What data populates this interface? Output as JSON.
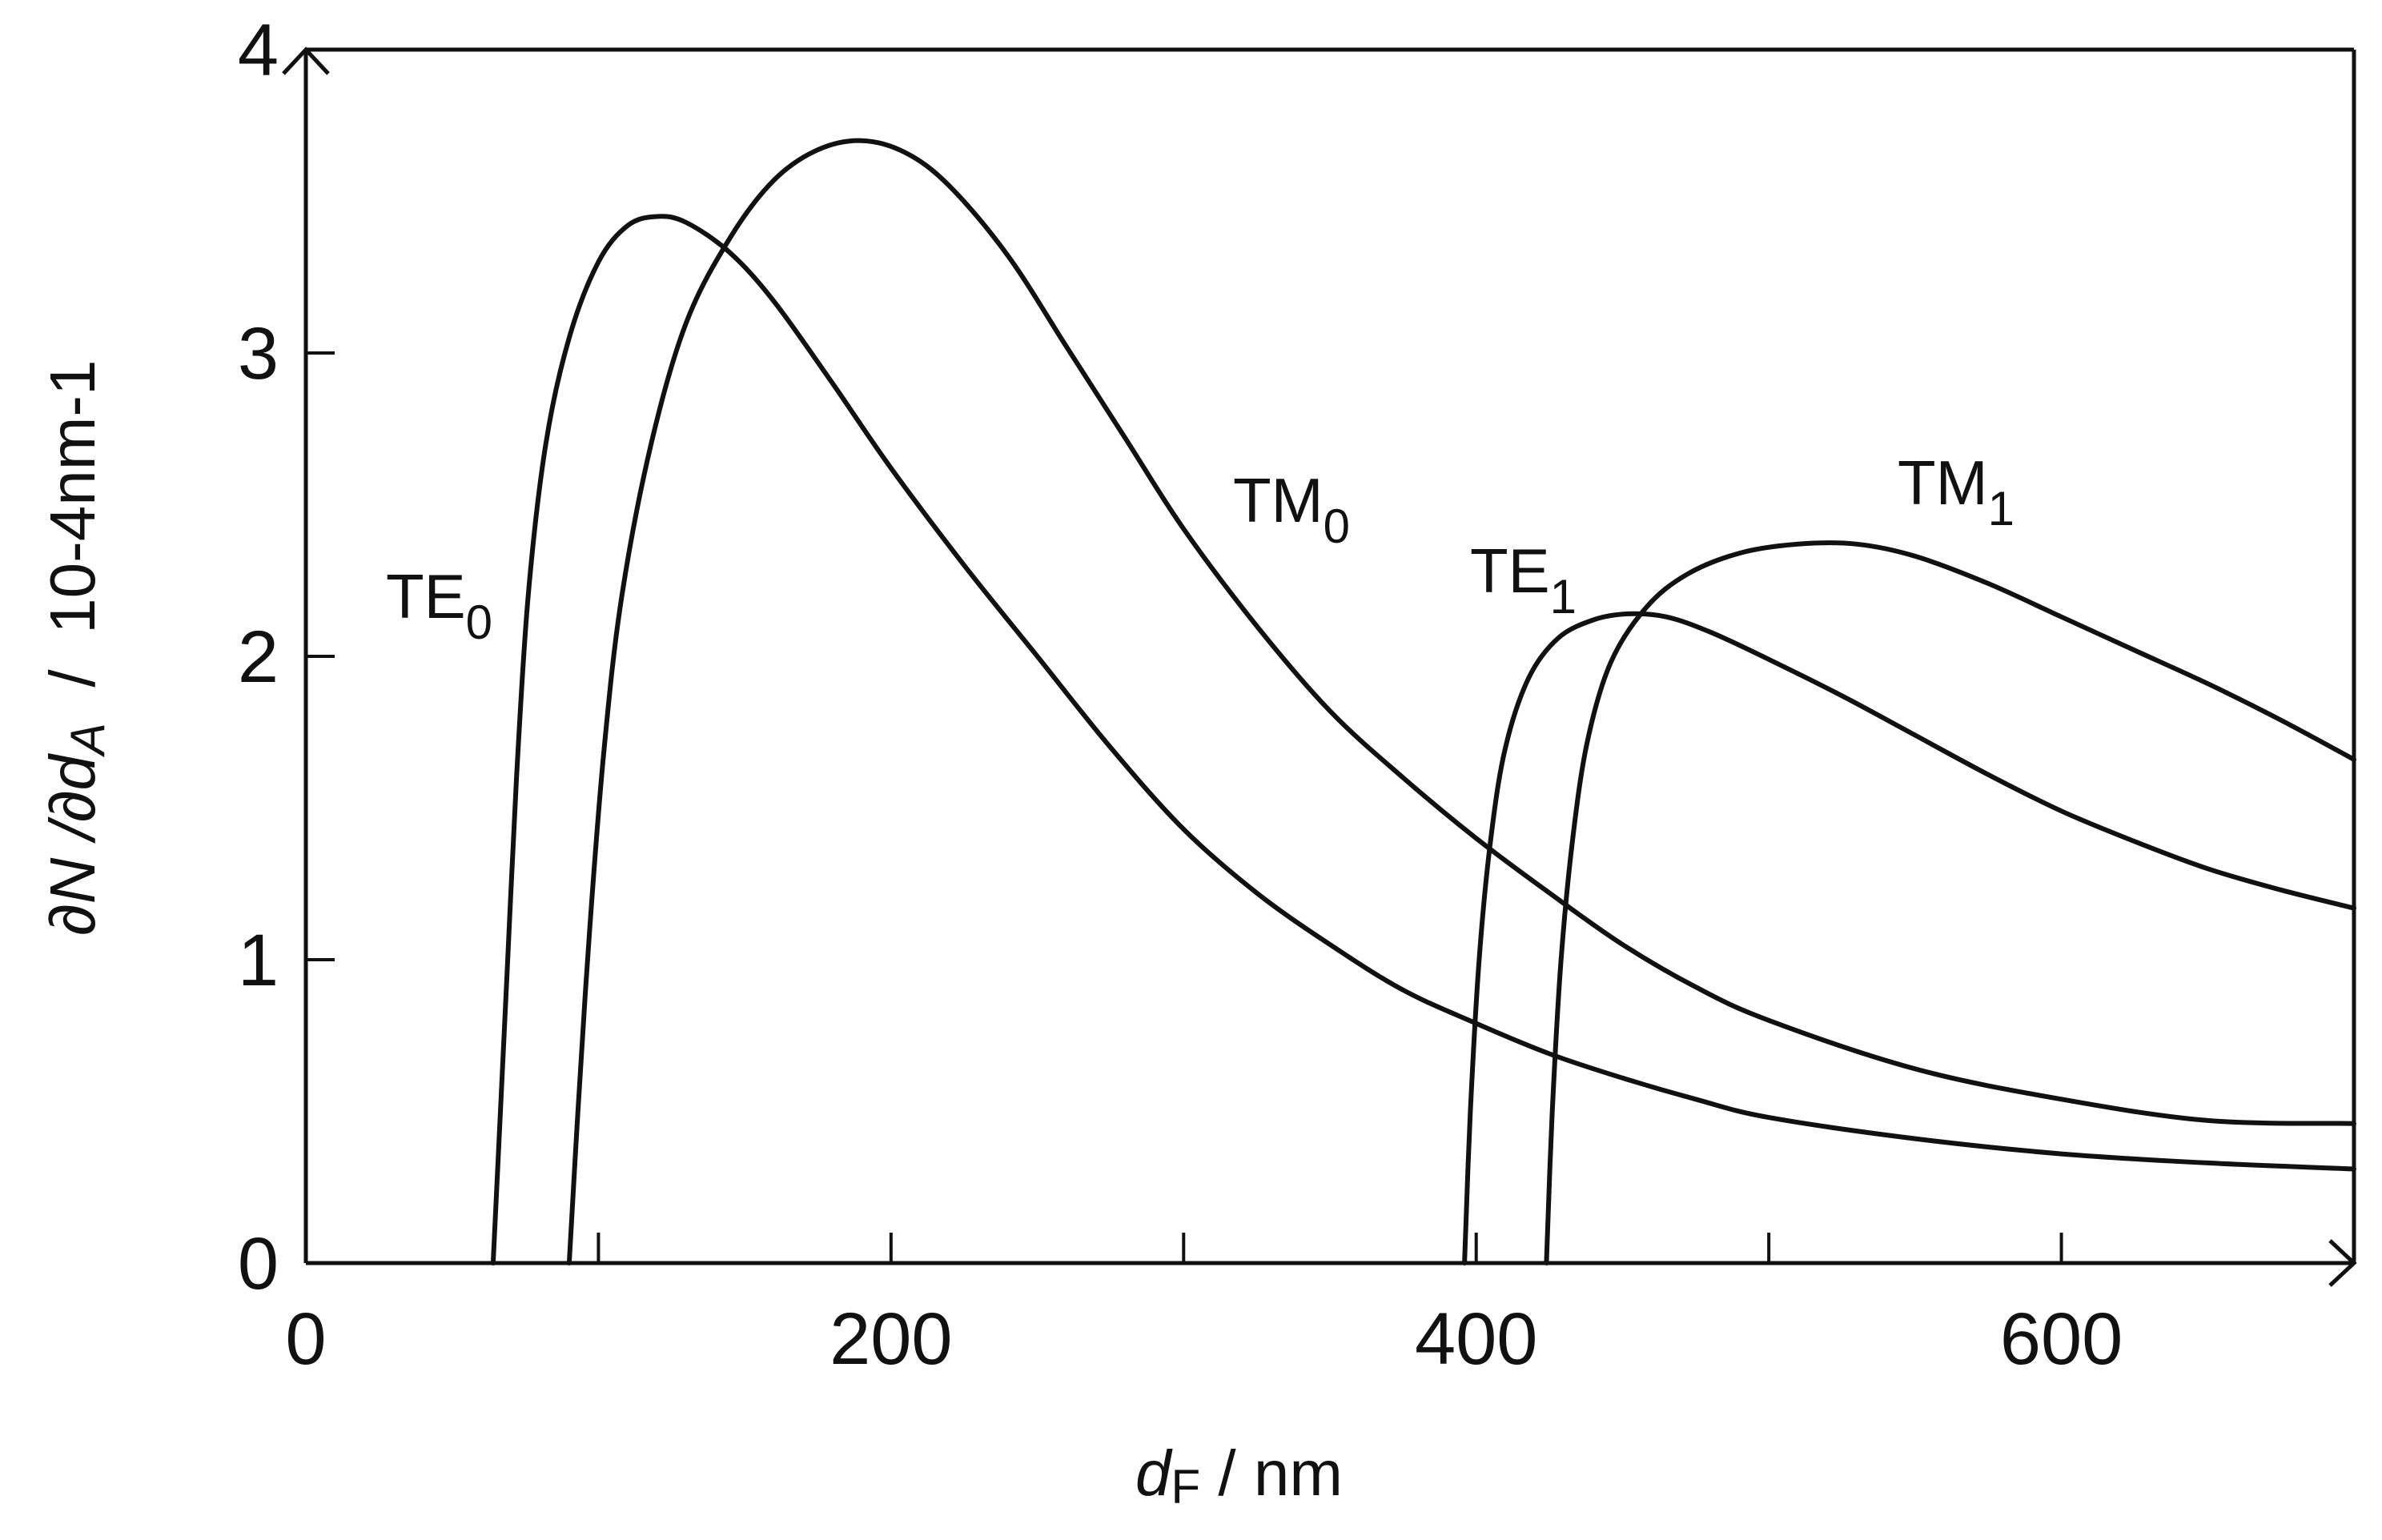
{
  "chart_data": {
    "type": "line",
    "xlabel": {
      "main": "d",
      "sub": "F",
      "rest": " / nm"
    },
    "ylabel": {
      "p1": "∂N /∂d",
      "sub": "A",
      "p2": "  /  10-4nm-1"
    },
    "xlim": [
      0,
      700
    ],
    "ylim": [
      0,
      4
    ],
    "x_ticks": [
      0,
      200,
      400,
      600
    ],
    "x_minor_ticks": [
      100,
      300,
      500,
      700
    ],
    "y_ticks": [
      0,
      1,
      2,
      3,
      4
    ],
    "grid": false,
    "series": [
      {
        "name": "TE0",
        "label_main": "TE",
        "label_sub": "0",
        "points": [
          [
            64,
            0
          ],
          [
            66,
            0.4
          ],
          [
            69,
            1.0
          ],
          [
            72,
            1.6
          ],
          [
            76,
            2.2
          ],
          [
            82,
            2.7
          ],
          [
            90,
            3.05
          ],
          [
            100,
            3.3
          ],
          [
            110,
            3.42
          ],
          [
            120,
            3.45
          ],
          [
            130,
            3.43
          ],
          [
            145,
            3.33
          ],
          [
            160,
            3.17
          ],
          [
            180,
            2.9
          ],
          [
            200,
            2.62
          ],
          [
            225,
            2.3
          ],
          [
            250,
            2.0
          ],
          [
            275,
            1.7
          ],
          [
            300,
            1.43
          ],
          [
            325,
            1.22
          ],
          [
            350,
            1.05
          ],
          [
            375,
            0.9
          ],
          [
            400,
            0.79
          ],
          [
            425,
            0.69
          ],
          [
            450,
            0.61
          ],
          [
            475,
            0.54
          ],
          [
            500,
            0.48
          ],
          [
            550,
            0.41
          ],
          [
            600,
            0.36
          ],
          [
            650,
            0.33
          ],
          [
            700,
            0.31
          ]
        ]
      },
      {
        "name": "TM0",
        "label_main": "TM",
        "label_sub": "0",
        "points": [
          [
            90,
            0
          ],
          [
            93,
            0.5
          ],
          [
            97,
            1.1
          ],
          [
            102,
            1.7
          ],
          [
            108,
            2.2
          ],
          [
            118,
            2.7
          ],
          [
            130,
            3.1
          ],
          [
            145,
            3.38
          ],
          [
            160,
            3.57
          ],
          [
            175,
            3.67
          ],
          [
            190,
            3.7
          ],
          [
            205,
            3.66
          ],
          [
            220,
            3.55
          ],
          [
            240,
            3.32
          ],
          [
            260,
            3.02
          ],
          [
            280,
            2.72
          ],
          [
            300,
            2.42
          ],
          [
            325,
            2.1
          ],
          [
            350,
            1.82
          ],
          [
            375,
            1.6
          ],
          [
            400,
            1.4
          ],
          [
            425,
            1.22
          ],
          [
            450,
            1.05
          ],
          [
            475,
            0.91
          ],
          [
            500,
            0.8
          ],
          [
            550,
            0.64
          ],
          [
            600,
            0.54
          ],
          [
            650,
            0.47
          ],
          [
            700,
            0.46
          ]
        ]
      },
      {
        "name": "TE1",
        "label_main": "TE",
        "label_sub": "1",
        "points": [
          [
            396,
            0
          ],
          [
            398,
            0.5
          ],
          [
            401,
            1.0
          ],
          [
            405,
            1.4
          ],
          [
            410,
            1.7
          ],
          [
            418,
            1.93
          ],
          [
            428,
            2.06
          ],
          [
            440,
            2.12
          ],
          [
            452,
            2.14
          ],
          [
            465,
            2.13
          ],
          [
            480,
            2.08
          ],
          [
            500,
            1.99
          ],
          [
            525,
            1.87
          ],
          [
            550,
            1.74
          ],
          [
            575,
            1.61
          ],
          [
            600,
            1.49
          ],
          [
            625,
            1.39
          ],
          [
            650,
            1.3
          ],
          [
            675,
            1.23
          ],
          [
            700,
            1.17
          ]
        ]
      },
      {
        "name": "TM1",
        "label_main": "TM",
        "label_sub": "1",
        "points": [
          [
            424,
            0
          ],
          [
            426,
            0.5
          ],
          [
            429,
            1.0
          ],
          [
            433,
            1.4
          ],
          [
            438,
            1.72
          ],
          [
            446,
            1.98
          ],
          [
            458,
            2.16
          ],
          [
            472,
            2.27
          ],
          [
            490,
            2.34
          ],
          [
            510,
            2.37
          ],
          [
            530,
            2.37
          ],
          [
            550,
            2.33
          ],
          [
            575,
            2.24
          ],
          [
            600,
            2.13
          ],
          [
            625,
            2.02
          ],
          [
            650,
            1.91
          ],
          [
            675,
            1.79
          ],
          [
            700,
            1.66
          ]
        ]
      }
    ]
  }
}
